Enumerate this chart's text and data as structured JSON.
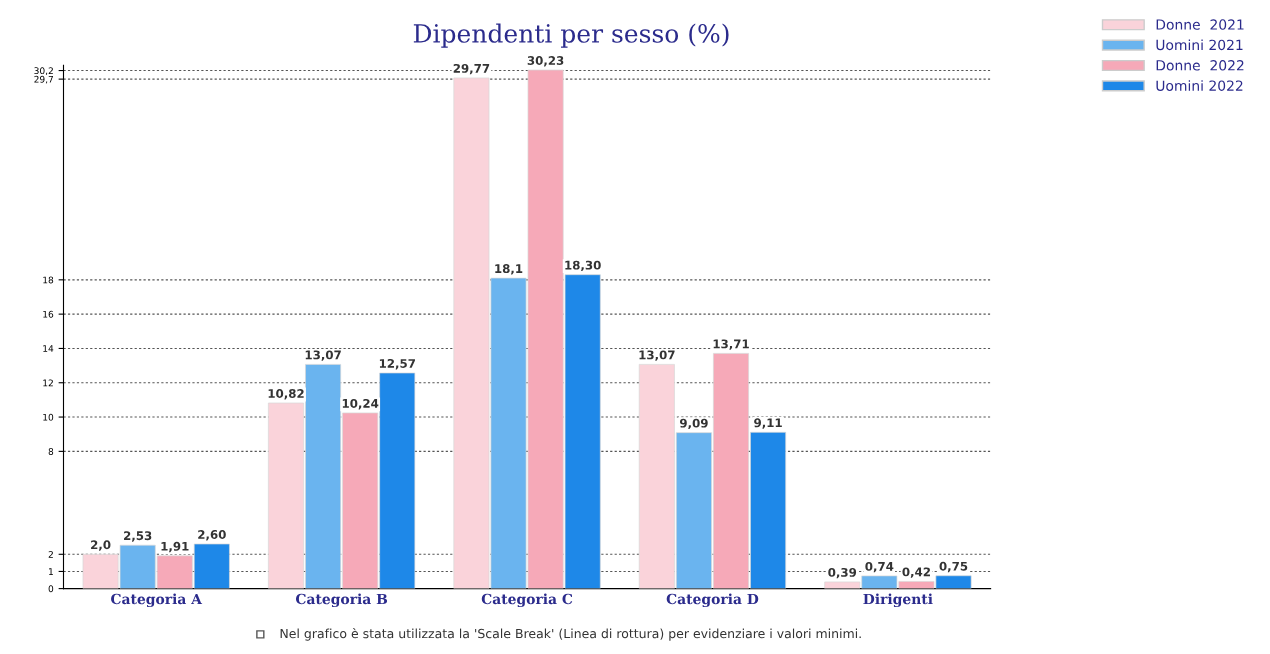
{
  "chart_data": {
    "type": "bar",
    "title": "Dipendenti per sesso (%)",
    "categories": [
      "Categoria A",
      "Categoria B",
      "Categoria C",
      "Categoria D",
      "Dirigenti"
    ],
    "series": [
      {
        "name": "Donne  2021",
        "color": "#fad3da",
        "values": [
          2.0,
          10.82,
          29.77,
          13.07,
          0.39
        ],
        "value_labels": [
          "2,0",
          "10,82",
          "29,77",
          "13,07",
          "0,39"
        ]
      },
      {
        "name": "Uomini 2021",
        "color": "#6ab4ef",
        "values": [
          2.53,
          13.07,
          18.1,
          9.09,
          0.74
        ],
        "value_labels": [
          "2,53",
          "13,07",
          "18,1",
          "9,09",
          "0,74"
        ]
      },
      {
        "name": "Donne  2022",
        "color": "#f6a9b8",
        "values": [
          1.91,
          10.24,
          30.23,
          13.71,
          0.42
        ],
        "value_labels": [
          "1,91",
          "10,24",
          "30,23",
          "13,71",
          "0,42"
        ]
      },
      {
        "name": "Uomini 2022",
        "color": "#1e88e8",
        "values": [
          2.6,
          12.57,
          18.3,
          9.11,
          0.75
        ],
        "value_labels": [
          "2,60",
          "12,57",
          "18,30",
          "9,11",
          "0,75"
        ]
      }
    ],
    "ylim": [
      0,
      30.5
    ],
    "yticks": [
      0,
      1,
      2,
      8,
      10,
      12,
      14,
      16,
      18,
      {
        "value": 29.7,
        "label": "29,7"
      },
      {
        "value": 30.2,
        "label": "30,2"
      }
    ],
    "grid": "y",
    "legend": "top right",
    "annotations": [
      "Nel grafico è stata utilizzata la 'Scale Break' (Linea di rottura) per evidenziare i valori minimi."
    ]
  }
}
